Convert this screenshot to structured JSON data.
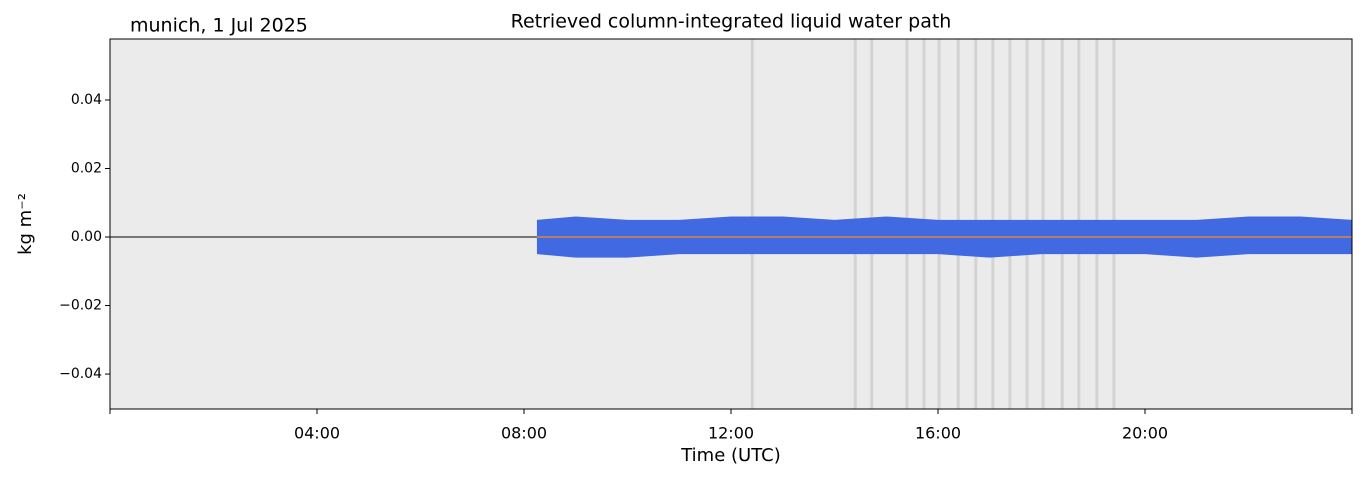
{
  "chart_data": {
    "type": "band",
    "title": "Retrieved column-integrated liquid water path",
    "subtitle": "munich, 1 Jul 2025",
    "xlabel": "Time (UTC)",
    "ylabel": "kg m⁻²",
    "xlim": [
      0,
      24
    ],
    "xticks": [
      {
        "value": 4,
        "label": "04:00"
      },
      {
        "value": 8,
        "label": "08:00"
      },
      {
        "value": 12,
        "label": "12:00"
      },
      {
        "value": 16,
        "label": "16:00"
      },
      {
        "value": 20,
        "label": "20:00"
      }
    ],
    "ylim": [
      -0.0502,
      0.0578
    ],
    "yticks": [
      {
        "value": -0.04,
        "label": "−0.04"
      },
      {
        "value": -0.02,
        "label": "−0.02"
      },
      {
        "value": 0,
        "label": "0.00"
      },
      0.02,
      0.04
    ],
    "hline": 0,
    "x": [
      8.25,
      9,
      10,
      11,
      12,
      13,
      14,
      15,
      16,
      17,
      18,
      19,
      20,
      21,
      22,
      23,
      24
    ],
    "scatter_high": [
      0.005,
      0.006,
      0.005,
      0.005,
      0.006,
      0.006,
      0.005,
      0.006,
      0.005,
      0.005,
      0.005,
      0.005,
      0.005,
      0.005,
      0.006,
      0.006,
      0.005
    ],
    "scatter_low": [
      -0.005,
      -0.006,
      -0.006,
      -0.005,
      -0.005,
      -0.005,
      -0.005,
      -0.005,
      -0.005,
      -0.006,
      -0.005,
      -0.005,
      -0.005,
      -0.006,
      -0.005,
      -0.005,
      -0.005
    ],
    "values": [
      0,
      0,
      0,
      0,
      0,
      0,
      0,
      0,
      0,
      0,
      0,
      0,
      0,
      0,
      0,
      0,
      0
    ],
    "color": "#4169e1",
    "line_color": "#ff8c1a",
    "flag_color": "#d3d3d3",
    "flags": [
      12.41,
      14.4,
      14.72,
      15.4,
      15.73,
      16.02,
      16.39,
      16.73,
      17.06,
      17.39,
      17.72,
      18.03,
      18.4,
      18.72,
      19.07,
      19.4
    ]
  }
}
